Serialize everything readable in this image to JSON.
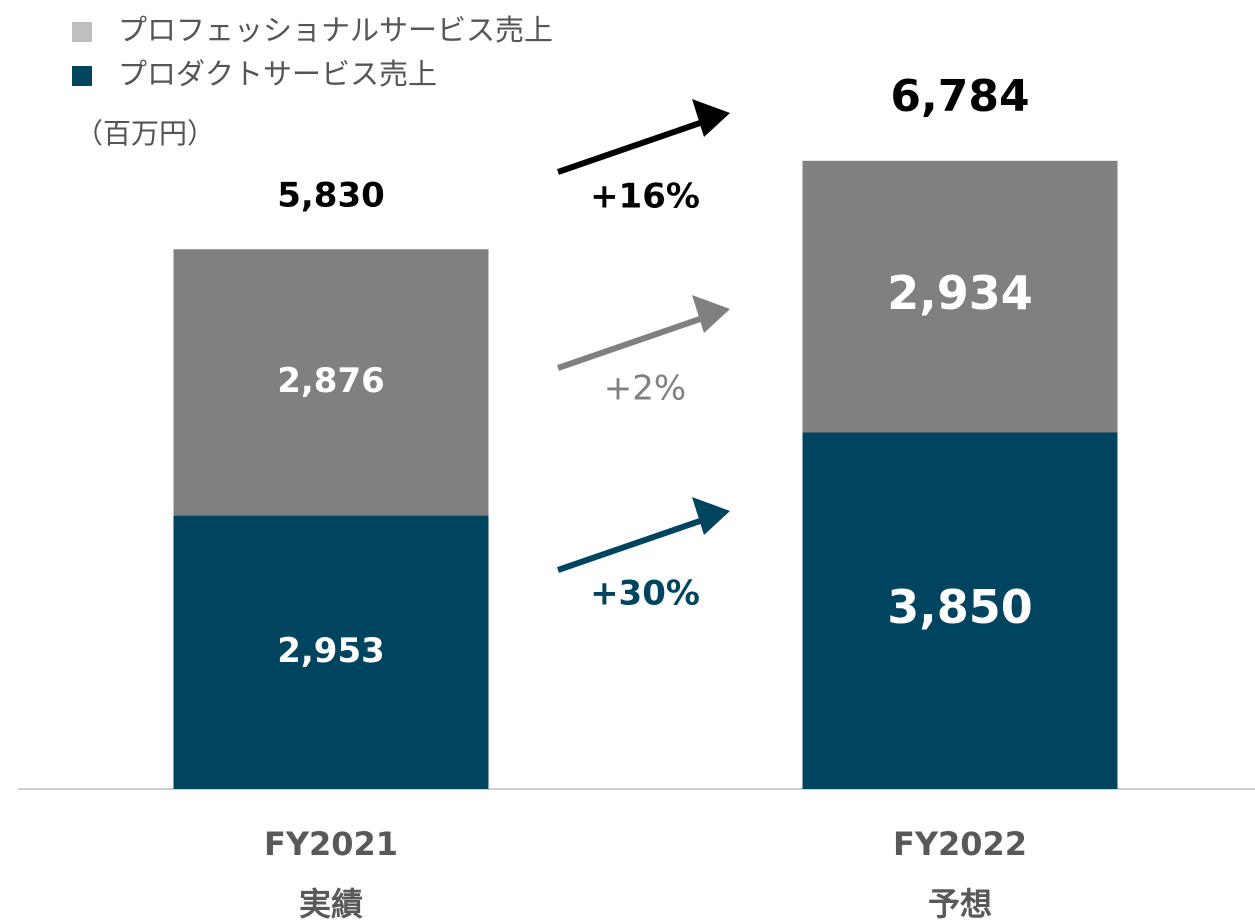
{
  "chart_data": {
    "type": "stacked_bar",
    "unit_label": "（百万円）",
    "categories": [
      [
        "FY2021",
        "実績"
      ],
      [
        "FY2022",
        "予想"
      ]
    ],
    "series": [
      {
        "name": "プロダクトサービス売上",
        "color": "#00445f",
        "legend_color": "#00445f",
        "values": [
          2953,
          3850
        ],
        "value_labels": [
          "2,953",
          "3,850"
        ]
      },
      {
        "name": "プロフェッショナルサービス売上",
        "color": "#808080",
        "legend_color": "#bfbfbf",
        "values": [
          2876,
          2934
        ],
        "value_labels": [
          "2,876",
          "2,934"
        ]
      }
    ],
    "totals": [
      5830,
      6784
    ],
    "total_labels": [
      "5,830",
      "6,784"
    ],
    "annotations": [
      {
        "text": "+16%",
        "color": "#000000"
      },
      {
        "text": "+2%",
        "color": "#808080"
      },
      {
        "text": "+30%",
        "color": "#00445f"
      }
    ]
  }
}
